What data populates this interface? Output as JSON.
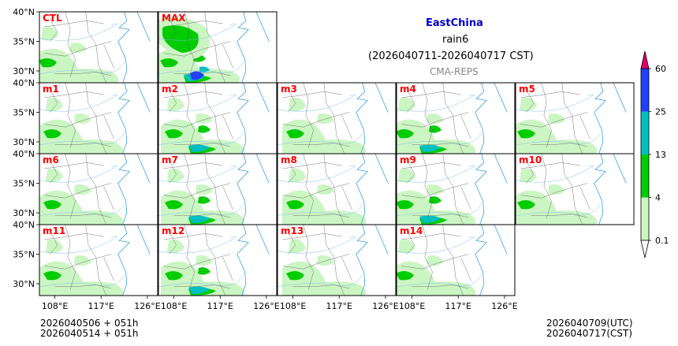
{
  "title": {
    "region": "EastChina",
    "variable": "rain6",
    "period": "(2026040711-2026040717 CST)",
    "model": "CMA-REPS",
    "region_color": "#0000cc",
    "model_color": "#888888"
  },
  "panels": [
    {
      "id": "CTL",
      "label": "CTL",
      "intensity": 1
    },
    {
      "id": "MAX",
      "label": "MAX",
      "intensity": 3
    },
    {
      "id": "m1",
      "label": "m1",
      "intensity": 1
    },
    {
      "id": "m2",
      "label": "m2",
      "intensity": 2
    },
    {
      "id": "m3",
      "label": "m3",
      "intensity": 1
    },
    {
      "id": "m4",
      "label": "m4",
      "intensity": 2
    },
    {
      "id": "m5",
      "label": "m5",
      "intensity": 1
    },
    {
      "id": "m6",
      "label": "m6",
      "intensity": 1
    },
    {
      "id": "m7",
      "label": "m7",
      "intensity": 2
    },
    {
      "id": "m8",
      "label": "m8",
      "intensity": 1
    },
    {
      "id": "m9",
      "label": "m9",
      "intensity": 2
    },
    {
      "id": "m10",
      "label": "m10",
      "intensity": 1
    },
    {
      "id": "m11",
      "label": "m11",
      "intensity": 1
    },
    {
      "id": "m12",
      "label": "m12",
      "intensity": 2
    },
    {
      "id": "m13",
      "label": "m13",
      "intensity": 1
    },
    {
      "id": "m14",
      "label": "m14",
      "intensity": 1
    }
  ],
  "axes": {
    "lat_ticks": [
      "40°N",
      "35°N",
      "30°N"
    ],
    "lon_ticks": [
      "108°E",
      "117°E",
      "126°E"
    ]
  },
  "colorbar": {
    "levels": [
      "0.1",
      "4",
      "13",
      "25",
      "60"
    ],
    "colors": [
      "#ccf5c4",
      "#00cc00",
      "#00bfbf",
      "#2040ff",
      "#e0006a"
    ]
  },
  "footer": {
    "init_utc": "2026040506  +  051h",
    "init_cst": "2026040514  +  051h",
    "valid_utc": "2026040709(UTC)",
    "valid_cst": "2026040717(CST)"
  },
  "label_color": "#ff0000"
}
